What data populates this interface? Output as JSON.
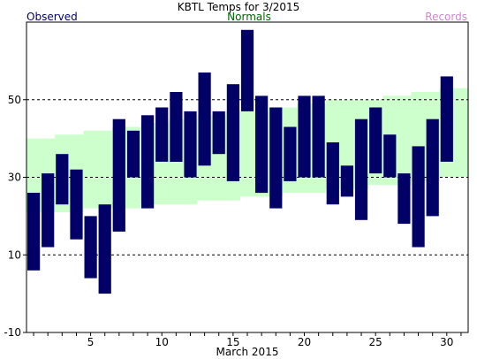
{
  "chart_data": {
    "type": "bar",
    "title": "KBTL Temps for 3/2015",
    "legend": {
      "observed": "Observed",
      "normals": "Normals",
      "records": "Records"
    },
    "xlabel": "March 2015",
    "x_ticks": [
      5,
      10,
      15,
      20,
      25,
      30
    ],
    "y_ticks": [
      -10,
      10,
      30,
      50
    ],
    "xlim": [
      0.5,
      31.5
    ],
    "ylim": [
      -10,
      70
    ],
    "grid_lines": [
      10,
      30,
      50
    ],
    "colors": {
      "observed": "#000066",
      "normals": "#006400",
      "records": "#cc88cc",
      "normals_band": "#ccffcc"
    },
    "days": [
      1,
      2,
      3,
      4,
      5,
      6,
      7,
      8,
      9,
      10,
      11,
      12,
      13,
      14,
      15,
      16,
      17,
      18,
      19,
      20,
      21,
      22,
      23,
      24,
      25,
      26,
      27,
      28,
      29,
      30,
      31
    ],
    "observed_high": [
      26,
      31,
      36,
      32,
      20,
      23,
      45,
      42,
      46,
      48,
      52,
      47,
      57,
      47,
      54,
      68,
      51,
      48,
      43,
      51,
      51,
      39,
      33,
      45,
      48,
      41,
      31,
      38,
      45,
      56,
      null
    ],
    "observed_low": [
      6,
      12,
      23,
      14,
      4,
      0,
      16,
      30,
      22,
      34,
      34,
      30,
      33,
      36,
      29,
      47,
      26,
      22,
      29,
      30,
      30,
      23,
      25,
      19,
      31,
      30,
      18,
      12,
      20,
      34,
      null
    ],
    "normal_high": [
      40,
      40,
      41,
      41,
      42,
      42,
      43,
      43,
      44,
      44,
      45,
      45,
      46,
      46,
      47,
      47,
      47,
      48,
      48,
      49,
      49,
      50,
      50,
      50,
      50,
      51,
      51,
      52,
      52,
      53,
      53
    ],
    "normal_low": [
      21,
      21,
      21,
      21,
      22,
      22,
      22,
      22,
      23,
      23,
      23,
      23,
      24,
      24,
      24,
      25,
      25,
      25,
      26,
      26,
      26,
      27,
      27,
      27,
      28,
      28,
      28,
      29,
      29,
      30,
      30
    ]
  }
}
